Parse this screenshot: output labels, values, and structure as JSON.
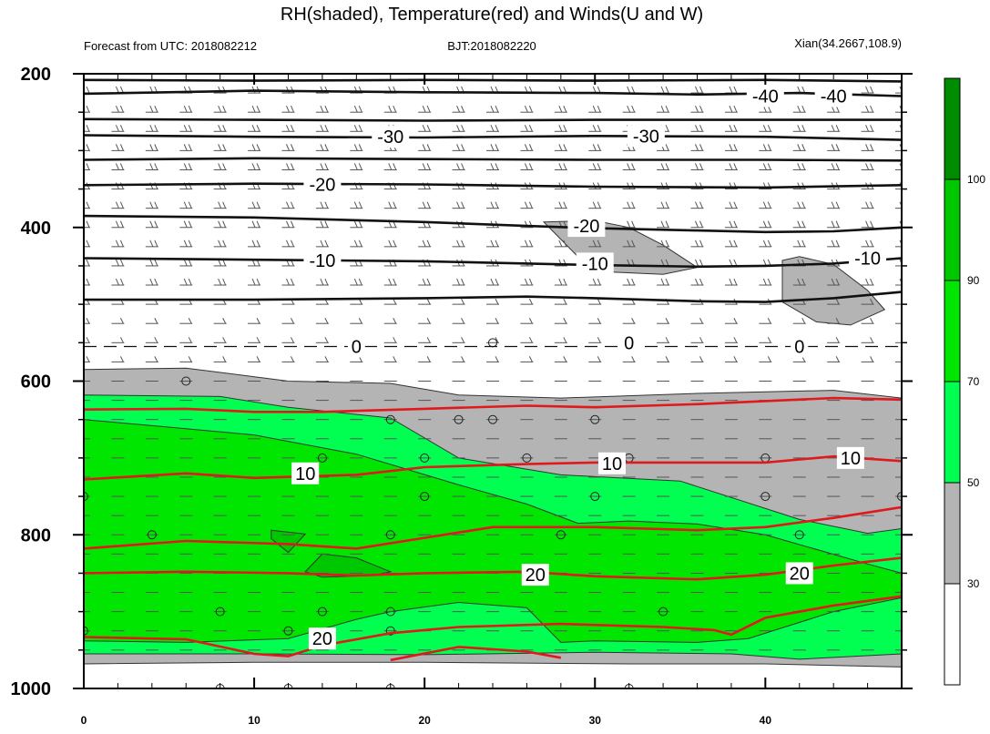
{
  "chart_data": {
    "type": "heatmap",
    "title": "RH(shaded), Temperature(red) and Winds(U and W)",
    "subtitle_left": "Forecast from UTC: 2018082212",
    "subtitle_center": "BJT:2018082220",
    "subtitle_right": "Xian(34.2667,108.9)",
    "x_range": [
      0,
      48
    ],
    "x_ticks": [
      "0",
      "10",
      "20",
      "30",
      "40"
    ],
    "y_range": [
      200,
      1000
    ],
    "y_scale": "linear, inverted (pressure)",
    "y_ticks": [
      "200",
      "400",
      "600",
      "800",
      "1000"
    ],
    "colorbar": {
      "levels": [
        "30",
        "50",
        "70",
        "90",
        "100"
      ],
      "colors": [
        "#ffffff",
        "#b4b4b4",
        "#00ff50",
        "#00e600",
        "#00c800",
        "#008c00"
      ]
    },
    "rh_regions": [
      {
        "level": "40",
        "color": "#b4b4b4",
        "points": [
          [
            0,
            585
          ],
          [
            6,
            583
          ],
          [
            12,
            600
          ],
          [
            18,
            603
          ],
          [
            22,
            618
          ],
          [
            28,
            622
          ],
          [
            36,
            616
          ],
          [
            44,
            612
          ],
          [
            48,
            622
          ],
          [
            48,
            972
          ],
          [
            40,
            968
          ],
          [
            32,
            968
          ],
          [
            20,
            966
          ],
          [
            10,
            966
          ],
          [
            0,
            968
          ]
        ]
      },
      {
        "level": "60",
        "color": "#00ff50",
        "points": [
          [
            0,
            618
          ],
          [
            8,
            620
          ],
          [
            12,
            634
          ],
          [
            18,
            648
          ],
          [
            22,
            700
          ],
          [
            28,
            722
          ],
          [
            35,
            730
          ],
          [
            42,
            780
          ],
          [
            46,
            798
          ],
          [
            48,
            792
          ],
          [
            48,
            955
          ],
          [
            42,
            962
          ],
          [
            38,
            955
          ],
          [
            30,
            953
          ],
          [
            20,
            956
          ],
          [
            10,
            955
          ],
          [
            0,
            955
          ]
        ]
      },
      {
        "level": "80",
        "color": "#00e600",
        "points": [
          [
            0,
            650
          ],
          [
            4,
            658
          ],
          [
            10,
            670
          ],
          [
            16,
            695
          ],
          [
            22,
            735
          ],
          [
            26,
            760
          ],
          [
            29,
            785
          ],
          [
            32,
            782
          ],
          [
            36,
            786
          ],
          [
            40,
            800
          ],
          [
            46,
            838
          ],
          [
            48,
            850
          ],
          [
            48,
            882
          ],
          [
            44,
            900
          ],
          [
            39,
            935
          ],
          [
            36,
            940
          ],
          [
            30,
            938
          ],
          [
            28,
            940
          ],
          [
            26,
            895
          ],
          [
            22,
            888
          ],
          [
            18,
            900
          ],
          [
            16,
            910
          ],
          [
            12,
            935
          ],
          [
            6,
            940
          ],
          [
            0,
            938
          ]
        ]
      },
      {
        "level": "92",
        "color": "#00c800",
        "points": [
          [
            14,
            825
          ],
          [
            16,
            830
          ],
          [
            18,
            848
          ],
          [
            17,
            853
          ],
          [
            14,
            855
          ],
          [
            13,
            848
          ]
        ]
      },
      {
        "level": "92",
        "color": "#00c800",
        "points": [
          [
            11,
            794
          ],
          [
            13,
            799
          ],
          [
            12,
            823
          ],
          [
            11,
            805
          ]
        ]
      },
      {
        "level": "40",
        "color": "#b4b4b4",
        "points": [
          [
            27,
            393
          ],
          [
            30,
            391
          ],
          [
            32,
            400
          ],
          [
            34,
            423
          ],
          [
            36,
            452
          ],
          [
            34,
            461
          ],
          [
            31,
            458
          ],
          [
            29,
            438
          ]
        ]
      },
      {
        "level": "40",
        "color": "#b4b4b4",
        "points": [
          [
            41,
            443
          ],
          [
            42,
            438
          ],
          [
            44,
            448
          ],
          [
            46,
            482
          ],
          [
            47,
            507
          ],
          [
            45,
            527
          ],
          [
            43,
            523
          ],
          [
            41,
            497
          ]
        ]
      }
    ],
    "temperature_isotherms_black": [
      {
        "label": "-40",
        "points": [
          [
            0,
            208
          ],
          [
            10,
            209
          ],
          [
            20,
            208
          ],
          [
            30,
            209
          ],
          [
            40,
            208
          ],
          [
            48,
            210
          ]
        ]
      },
      {
        "label": "-40",
        "points": [
          [
            0,
            226
          ],
          [
            10,
            222
          ],
          [
            20,
            224
          ],
          [
            30,
            225
          ],
          [
            36,
            227
          ],
          [
            42,
            225
          ],
          [
            48,
            229
          ]
        ]
      },
      {
        "label": "-40",
        "points": [
          [
            0,
            259
          ],
          [
            10,
            260
          ],
          [
            20,
            261
          ],
          [
            30,
            260
          ],
          [
            40,
            260
          ],
          [
            48,
            260
          ]
        ]
      },
      {
        "label": "-30",
        "points": [
          [
            0,
            280
          ],
          [
            10,
            282
          ],
          [
            20,
            283
          ],
          [
            30,
            281
          ],
          [
            40,
            282
          ],
          [
            48,
            286
          ]
        ]
      },
      {
        "label": "-30",
        "points": [
          [
            0,
            312
          ],
          [
            10,
            310
          ],
          [
            20,
            311
          ],
          [
            30,
            312
          ],
          [
            40,
            312
          ],
          [
            48,
            313
          ]
        ]
      },
      {
        "label": "-20",
        "points": [
          [
            0,
            345
          ],
          [
            10,
            343
          ],
          [
            20,
            344
          ],
          [
            30,
            347
          ],
          [
            40,
            348
          ],
          [
            48,
            345
          ]
        ]
      },
      {
        "label": "-20",
        "points": [
          [
            0,
            385
          ],
          [
            10,
            387
          ],
          [
            20,
            393
          ],
          [
            26,
            398
          ],
          [
            30,
            401
          ],
          [
            36,
            404
          ],
          [
            40,
            406
          ],
          [
            44,
            405
          ],
          [
            48,
            400
          ]
        ]
      },
      {
        "label": "-10",
        "points": [
          [
            0,
            440
          ],
          [
            10,
            442
          ],
          [
            20,
            444
          ],
          [
            24,
            446
          ],
          [
            30,
            449
          ],
          [
            36,
            451
          ],
          [
            40,
            450
          ],
          [
            44,
            447
          ],
          [
            48,
            440
          ]
        ]
      },
      {
        "label": "-10",
        "points": [
          [
            0,
            494
          ],
          [
            10,
            494
          ],
          [
            20,
            492
          ],
          [
            26,
            490
          ],
          [
            30,
            492
          ],
          [
            36,
            496
          ],
          [
            40,
            497
          ],
          [
            44,
            492
          ],
          [
            48,
            484
          ]
        ]
      }
    ],
    "temperature_isotherms_red": [
      {
        "label": "10",
        "points": [
          [
            0,
            637
          ],
          [
            6,
            636
          ],
          [
            10,
            640
          ],
          [
            14,
            640
          ],
          [
            20,
            636
          ],
          [
            26,
            632
          ],
          [
            30,
            634
          ],
          [
            36,
            630
          ],
          [
            40,
            626
          ],
          [
            44,
            622
          ],
          [
            48,
            624
          ]
        ]
      },
      {
        "label": "10",
        "points": [
          [
            0,
            728
          ],
          [
            6,
            720
          ],
          [
            10,
            726
          ],
          [
            16,
            722
          ],
          [
            20,
            712
          ],
          [
            26,
            708
          ],
          [
            30,
            706
          ],
          [
            36,
            706
          ],
          [
            40,
            706
          ],
          [
            44,
            698
          ],
          [
            48,
            704
          ]
        ]
      },
      {
        "label": "20",
        "points": [
          [
            0,
            818
          ],
          [
            6,
            808
          ],
          [
            12,
            812
          ],
          [
            16,
            818
          ],
          [
            20,
            804
          ],
          [
            24,
            790
          ],
          [
            30,
            790
          ],
          [
            36,
            794
          ],
          [
            40,
            790
          ],
          [
            44,
            778
          ],
          [
            48,
            764
          ]
        ]
      },
      {
        "label": "20",
        "points": [
          [
            0,
            850
          ],
          [
            6,
            848
          ],
          [
            12,
            850
          ],
          [
            16,
            853
          ],
          [
            20,
            850
          ],
          [
            26,
            848
          ],
          [
            30,
            854
          ],
          [
            36,
            858
          ],
          [
            40,
            852
          ],
          [
            44,
            840
          ],
          [
            48,
            830
          ]
        ]
      },
      {
        "label": "20",
        "points": [
          [
            0,
            933
          ],
          [
            6,
            936
          ],
          [
            10,
            955
          ],
          [
            12,
            958
          ],
          [
            14,
            944
          ],
          [
            18,
            928
          ],
          [
            22,
            920
          ],
          [
            28,
            916
          ],
          [
            34,
            920
          ],
          [
            37,
            924
          ],
          [
            38,
            930
          ],
          [
            40,
            908
          ],
          [
            44,
            892
          ],
          [
            48,
            880
          ]
        ]
      },
      {
        "label": "",
        "points": [
          [
            18,
            963
          ],
          [
            22,
            946
          ],
          [
            26,
            952
          ],
          [
            28,
            960
          ]
        ]
      }
    ],
    "zero_isotherm": {
      "label": "0",
      "points": [
        [
          0,
          555
        ],
        [
          48,
          555
        ]
      ]
    },
    "contour_labels": [
      {
        "text": "-40",
        "x": 40.0,
        "y": 229
      },
      {
        "text": "-40",
        "x": 44.0,
        "y": 229
      },
      {
        "text": "-30",
        "x": 18.0,
        "y": 282
      },
      {
        "text": "-30",
        "x": 33.0,
        "y": 281
      },
      {
        "text": "-20",
        "x": 14.0,
        "y": 344
      },
      {
        "text": "-20",
        "x": 29.5,
        "y": 398
      },
      {
        "text": "-10",
        "x": 14.0,
        "y": 443
      },
      {
        "text": "-10",
        "x": 30.0,
        "y": 447
      },
      {
        "text": "-10",
        "x": 46.0,
        "y": 440
      },
      {
        "text": "0",
        "x": 16.0,
        "y": 555
      },
      {
        "text": "0",
        "x": 32.0,
        "y": 550
      },
      {
        "text": "0",
        "x": 42.0,
        "y": 555
      },
      {
        "text": "10",
        "x": 13.0,
        "y": 720
      },
      {
        "text": "10",
        "x": 31.0,
        "y": 707
      },
      {
        "text": "10",
        "x": 45.0,
        "y": 700
      },
      {
        "text": "20",
        "x": 26.5,
        "y": 852
      },
      {
        "text": "20",
        "x": 42.0,
        "y": 850
      },
      {
        "text": "20",
        "x": 14.0,
        "y": 935
      }
    ],
    "wind_barb_levels": [
      225,
      250,
      275,
      300,
      325,
      350,
      375,
      400,
      425,
      450,
      475,
      500,
      525,
      550,
      575,
      600,
      625,
      650,
      675,
      700,
      725,
      750,
      775,
      800,
      825,
      850,
      875,
      900,
      925,
      950
    ],
    "calm_wind_circles": [
      [
        6,
        600
      ],
      [
        18,
        650
      ],
      [
        22,
        650
      ],
      [
        24,
        650
      ],
      [
        30,
        650
      ],
      [
        24,
        550
      ],
      [
        14,
        700
      ],
      [
        20,
        700
      ],
      [
        26,
        700
      ],
      [
        32,
        700
      ],
      [
        40,
        700
      ],
      [
        0,
        750
      ],
      [
        20,
        750
      ],
      [
        30,
        750
      ],
      [
        40,
        750
      ],
      [
        48,
        750
      ],
      [
        4,
        800
      ],
      [
        18,
        800
      ],
      [
        28,
        800
      ],
      [
        42,
        800
      ],
      [
        8,
        900
      ],
      [
        14,
        900
      ],
      [
        18,
        900
      ],
      [
        34,
        900
      ],
      [
        0,
        925
      ],
      [
        12,
        925
      ],
      [
        18,
        925
      ],
      [
        8,
        1000
      ],
      [
        12,
        1000
      ],
      [
        18,
        1000
      ],
      [
        32,
        1000
      ]
    ]
  }
}
